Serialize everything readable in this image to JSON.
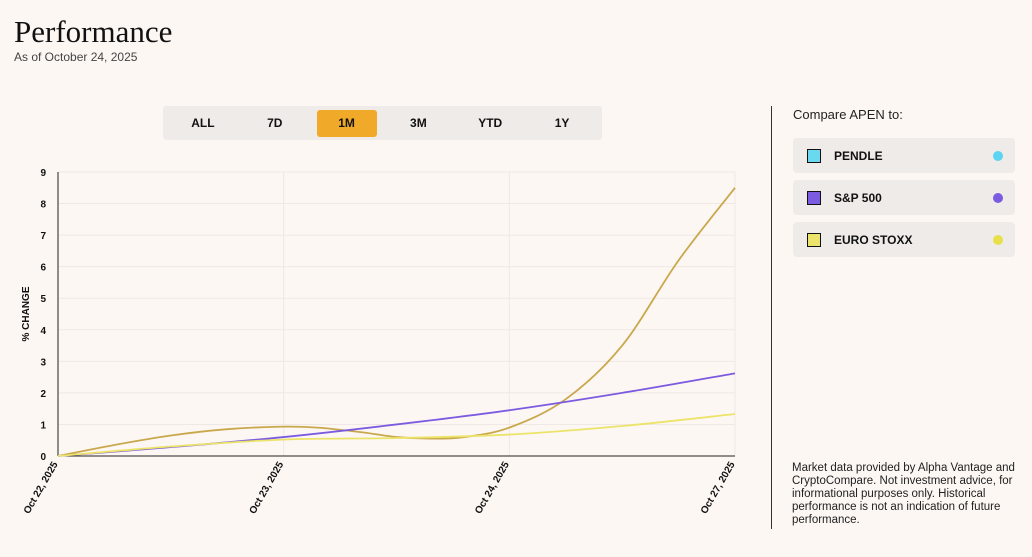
{
  "header": {
    "title": "Performance",
    "subtitle": "As of October 24, 2025"
  },
  "ranges": [
    {
      "label": "ALL",
      "active": false
    },
    {
      "label": "7D",
      "active": false
    },
    {
      "label": "1M",
      "active": true
    },
    {
      "label": "3M",
      "active": false
    },
    {
      "label": "YTD",
      "active": false
    },
    {
      "label": "1Y",
      "active": false
    }
  ],
  "compare": {
    "label": "Compare APEN to:",
    "items": [
      {
        "label": "PENDLE",
        "checkbox_color": "#6ad8ee",
        "dot_color": "#5ad4f0"
      },
      {
        "label": "S&P 500",
        "checkbox_color": "#7b5ce0",
        "dot_color": "#7b5ce0"
      },
      {
        "label": "EURO STOXX",
        "checkbox_color": "#ece46a",
        "dot_color": "#e8e04a"
      }
    ]
  },
  "disclaimer": "Market data provided by Alpha Vantage and CryptoCompare. Not investment advice, for informational purposes only. Historical performance is not an indication of future performance.",
  "chart_data": {
    "type": "line",
    "ylabel": "% CHANGE",
    "xlabel": "",
    "ylim": [
      0,
      9
    ],
    "yticks": [
      0,
      1,
      2,
      3,
      4,
      5,
      6,
      7,
      8,
      9
    ],
    "xlim": [
      0,
      3
    ],
    "x_ticks": [
      {
        "x": 0,
        "label": "Oct 22, 2025"
      },
      {
        "x": 1,
        "label": "Oct 23, 2025"
      },
      {
        "x": 2,
        "label": "Oct 24, 2025"
      },
      {
        "x": 3,
        "label": "Oct 27, 2025"
      }
    ],
    "grid": true,
    "series": [
      {
        "color": "#c9a84c",
        "points": [
          [
            0,
            0
          ],
          [
            0.25,
            0.35
          ],
          [
            0.5,
            0.65
          ],
          [
            0.75,
            0.85
          ],
          [
            1,
            0.93
          ],
          [
            1.15,
            0.9
          ],
          [
            1.35,
            0.75
          ],
          [
            1.5,
            0.6
          ],
          [
            1.65,
            0.55
          ],
          [
            1.8,
            0.6
          ],
          [
            2,
            0.9
          ],
          [
            2.25,
            1.8
          ],
          [
            2.5,
            3.5
          ],
          [
            2.75,
            6.2
          ],
          [
            3,
            8.5
          ]
        ]
      },
      {
        "color": "#7b5ce0",
        "points": [
          [
            0,
            0
          ],
          [
            0.5,
            0.28
          ],
          [
            1,
            0.6
          ],
          [
            1.5,
            1.0
          ],
          [
            2,
            1.45
          ],
          [
            2.5,
            2.0
          ],
          [
            3,
            2.62
          ]
        ]
      },
      {
        "color": "#ece46a",
        "points": [
          [
            0,
            0
          ],
          [
            0.5,
            0.3
          ],
          [
            1,
            0.52
          ],
          [
            1.5,
            0.57
          ],
          [
            2,
            0.68
          ],
          [
            2.5,
            0.95
          ],
          [
            3,
            1.33
          ]
        ]
      }
    ]
  }
}
